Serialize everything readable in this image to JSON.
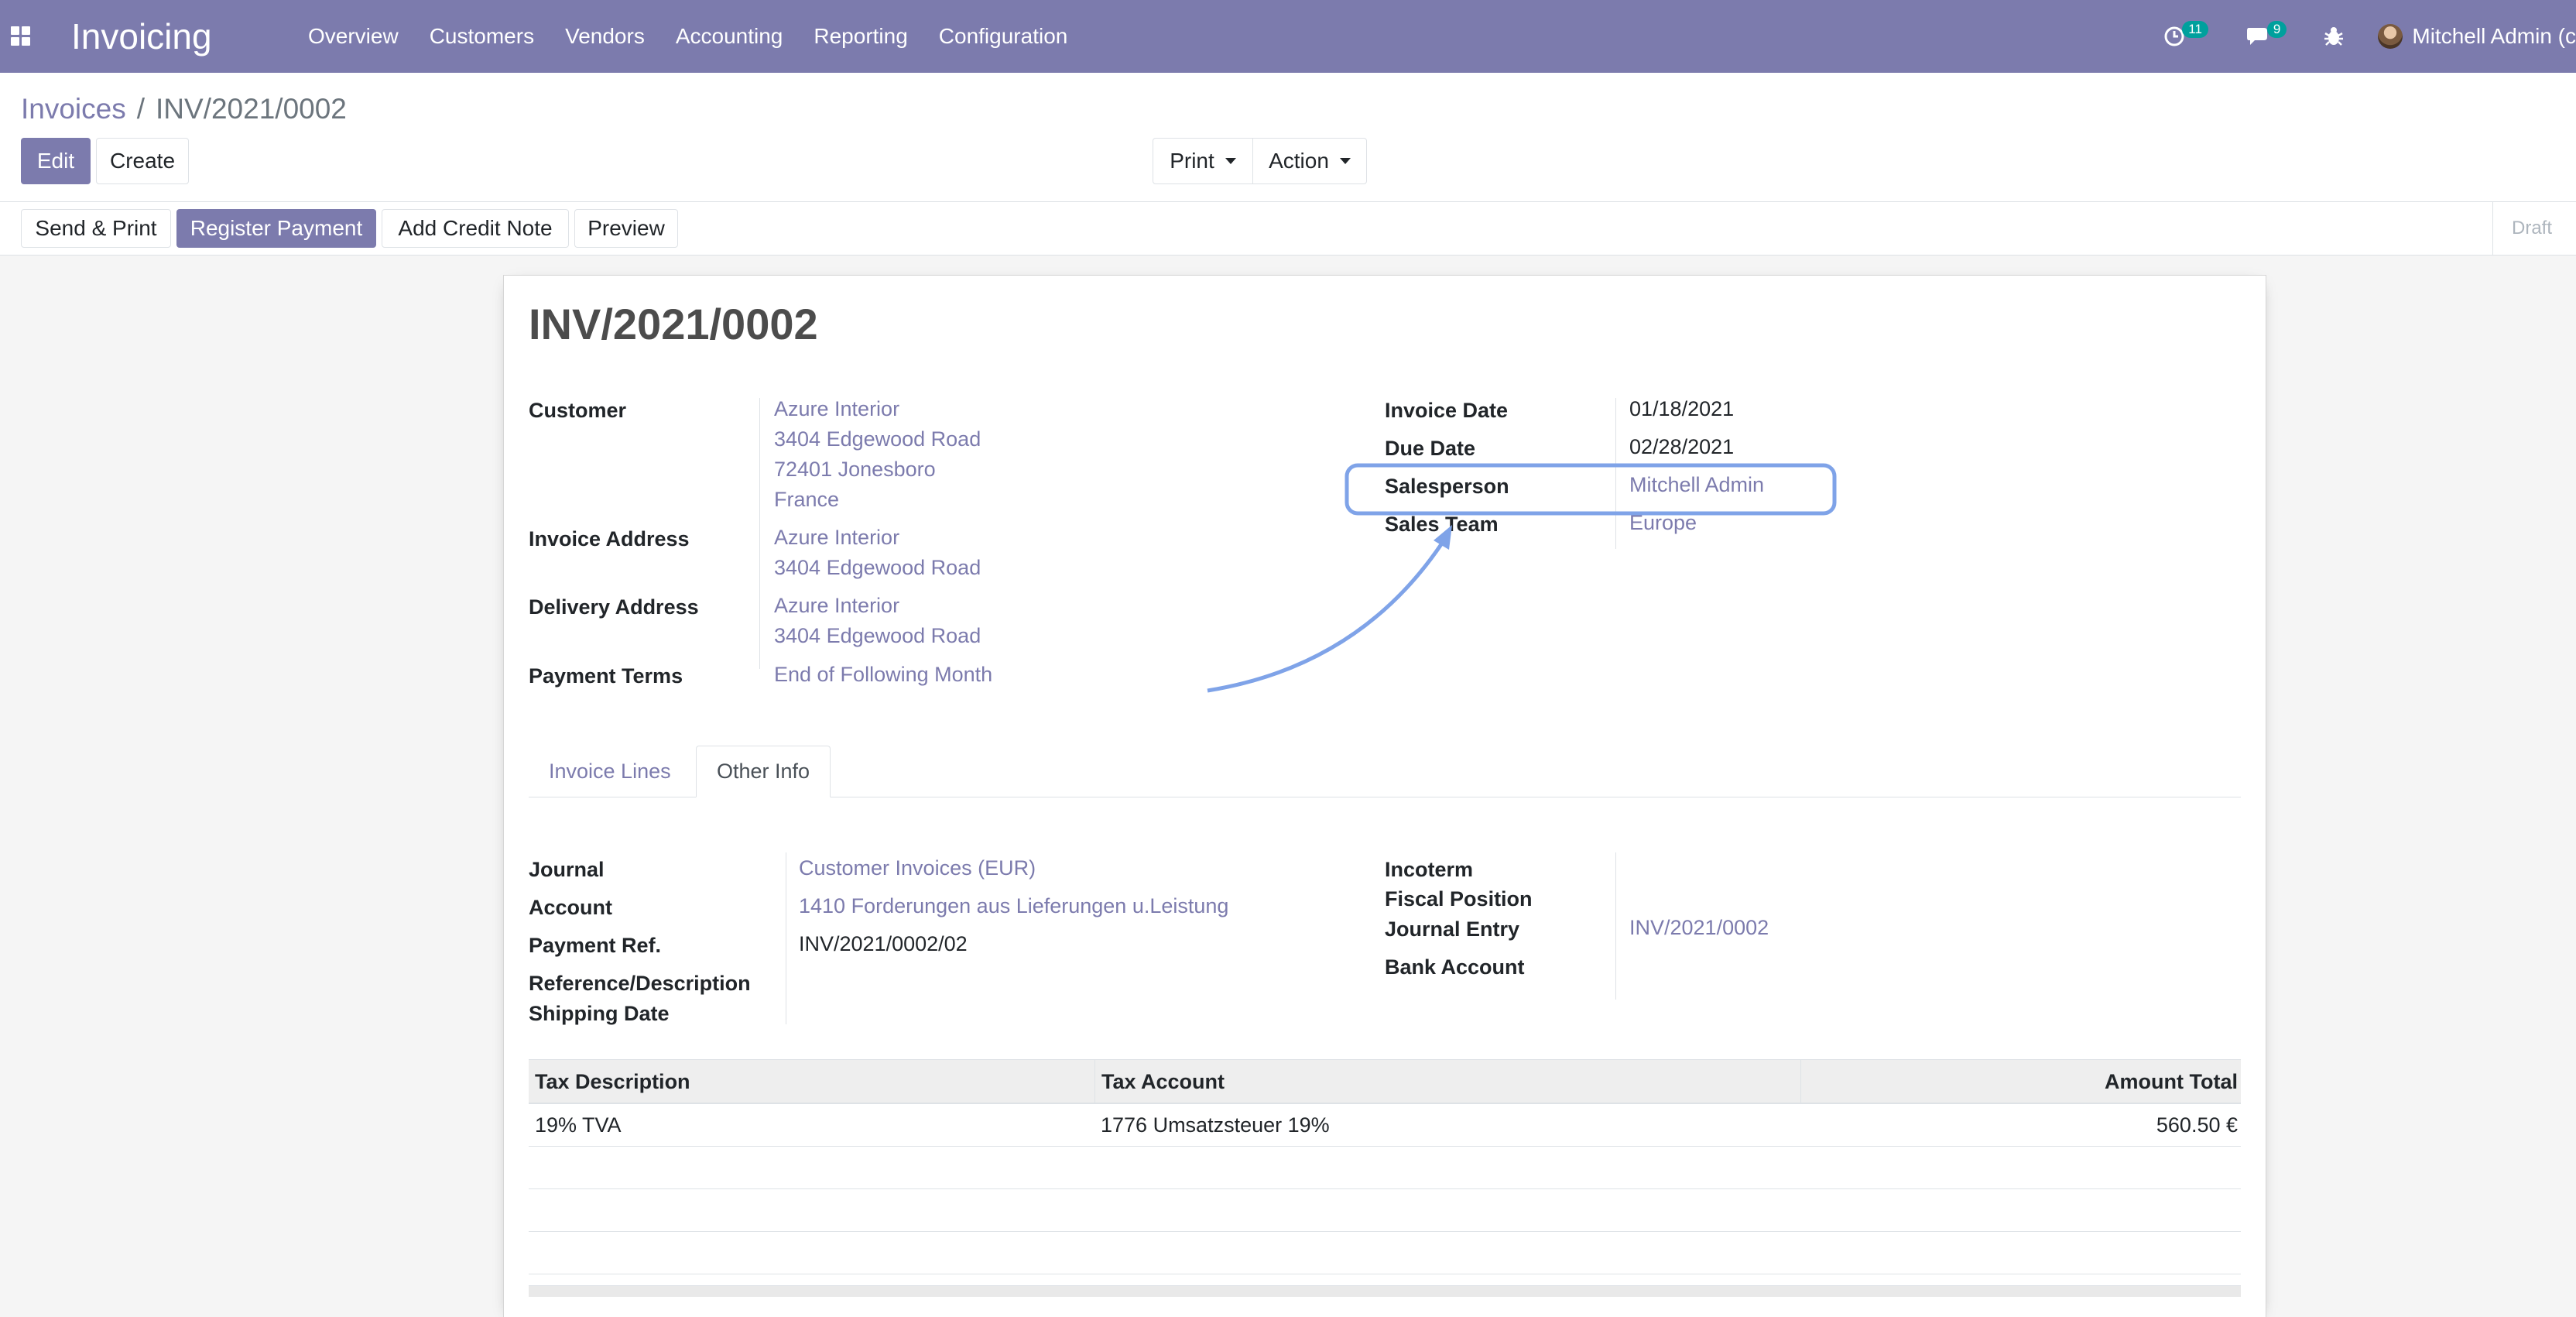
{
  "navbar": {
    "app_name": "Invoicing",
    "menu": [
      "Overview",
      "Customers",
      "Vendors",
      "Accounting",
      "Reporting",
      "Configuration"
    ],
    "activity_count": "11",
    "message_count": "9",
    "user_name": "Mitchell Admin (c"
  },
  "control_panel": {
    "breadcrumb_parent": "Invoices",
    "breadcrumb_separator": "/",
    "breadcrumb_current": "INV/2021/0002",
    "edit_label": "Edit",
    "create_label": "Create",
    "print_label": "Print",
    "action_label": "Action"
  },
  "statusbar": {
    "send_print_label": "Send & Print",
    "register_payment_label": "Register Payment",
    "add_credit_note_label": "Add Credit Note",
    "preview_label": "Preview",
    "status": "Draft"
  },
  "invoice": {
    "number": "INV/2021/0002",
    "customer_label": "Customer",
    "customer_lines": [
      "Azure Interior",
      "3404 Edgewood Road",
      "72401 Jonesboro",
      "France"
    ],
    "invoice_address_label": "Invoice Address",
    "invoice_address_lines": [
      "Azure Interior",
      "3404 Edgewood Road"
    ],
    "delivery_address_label": "Delivery Address",
    "delivery_address_lines": [
      "Azure Interior",
      "3404 Edgewood Road"
    ],
    "payment_terms_label": "Payment Terms",
    "payment_terms": "End of Following Month",
    "invoice_date_label": "Invoice Date",
    "invoice_date": "01/18/2021",
    "due_date_label": "Due Date",
    "due_date": "02/28/2021",
    "salesperson_label": "Salesperson",
    "salesperson": "Mitchell Admin",
    "sales_team_label": "Sales Team",
    "sales_team": "Europe"
  },
  "tabs": [
    "Invoice Lines",
    "Other Info"
  ],
  "other_info": {
    "journal_label": "Journal",
    "journal": "Customer Invoices (EUR)",
    "account_label": "Account",
    "account": "1410 Forderungen aus Lieferungen u.Leistung",
    "payment_ref_label": "Payment Ref.",
    "payment_ref": "INV/2021/0002/02",
    "reference_label": "Reference/Description",
    "shipping_date_label": "Shipping Date",
    "incoterm_label": "Incoterm",
    "fiscal_position_label": "Fiscal Position",
    "journal_entry_label": "Journal Entry",
    "journal_entry": "INV/2021/0002",
    "bank_account_label": "Bank Account"
  },
  "tax_table": {
    "headers": [
      "Tax Description",
      "Tax Account",
      "Amount Total"
    ],
    "rows": [
      {
        "description": "19% TVA",
        "account": "1776 Umsatzsteuer 19%",
        "amount": "560.50 €"
      }
    ]
  },
  "annotation": {
    "highlight_color": "#7fa3e8"
  }
}
